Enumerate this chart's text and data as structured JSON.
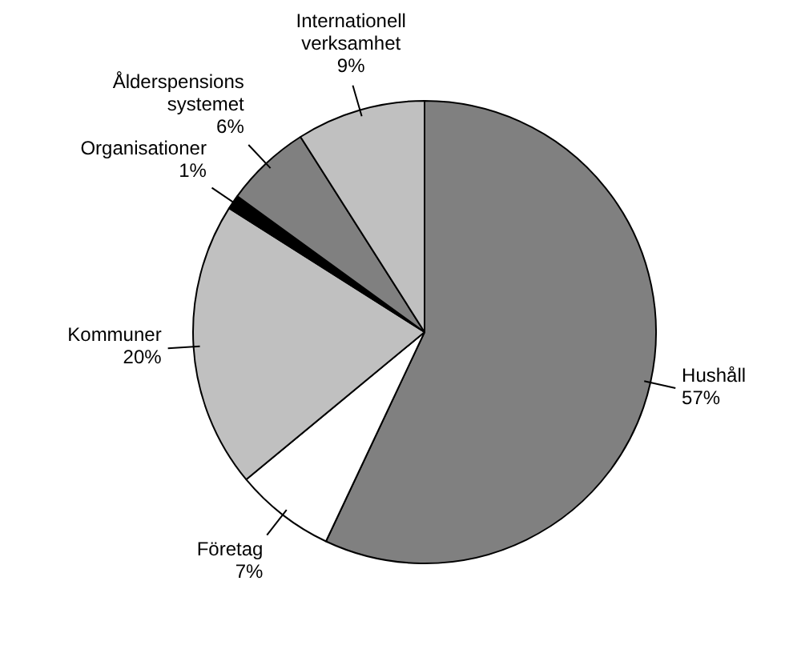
{
  "chart_data": {
    "type": "pie",
    "categories": [
      "Hushåll",
      "Företag",
      "Kommuner",
      "Organisationer",
      "Ålderspensions\nsystemet",
      "Internationell\nverksamhet"
    ],
    "values": [
      57,
      7,
      20,
      1,
      6,
      9
    ],
    "value_labels": [
      "57%",
      "7%",
      "20%",
      "1%",
      "6%",
      "9%"
    ],
    "colors": [
      "#808080",
      "#ffffff",
      "#c0c0c0",
      "#000000",
      "#808080",
      "#c0c0c0"
    ],
    "legend": false
  }
}
